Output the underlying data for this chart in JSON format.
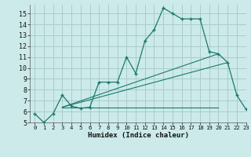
{
  "bg_color": "#cceaea",
  "grid_color": "#aacccc",
  "line_color": "#1a7a6a",
  "xlabel": "Humidex (Indice chaleur)",
  "ylim": [
    5,
    15.8
  ],
  "xlim": [
    -0.5,
    23
  ],
  "yticks": [
    5,
    6,
    7,
    8,
    9,
    10,
    11,
    12,
    13,
    14,
    15
  ],
  "xticks": [
    0,
    1,
    2,
    3,
    4,
    5,
    6,
    7,
    8,
    9,
    10,
    11,
    12,
    13,
    14,
    15,
    16,
    17,
    18,
    19,
    20,
    21,
    22,
    23
  ],
  "main_x": [
    0,
    1,
    2,
    3,
    4,
    5,
    6,
    7,
    8,
    9,
    10,
    11,
    12,
    13,
    14,
    15,
    16,
    17,
    18,
    19,
    20,
    21,
    22,
    23
  ],
  "main_y": [
    5.8,
    5.0,
    5.8,
    7.5,
    6.5,
    6.3,
    6.4,
    8.7,
    8.7,
    8.7,
    11.0,
    9.5,
    12.5,
    13.5,
    15.5,
    15.0,
    14.5,
    14.5,
    14.5,
    11.5,
    11.3,
    10.5,
    7.5,
    6.2
  ],
  "line1_x": [
    3,
    20
  ],
  "line1_y": [
    6.4,
    11.3
  ],
  "line2_x": [
    3,
    21
  ],
  "line2_y": [
    6.4,
    10.5
  ],
  "hline_x": [
    3,
    20
  ],
  "hline_y": [
    6.4,
    6.4
  ]
}
